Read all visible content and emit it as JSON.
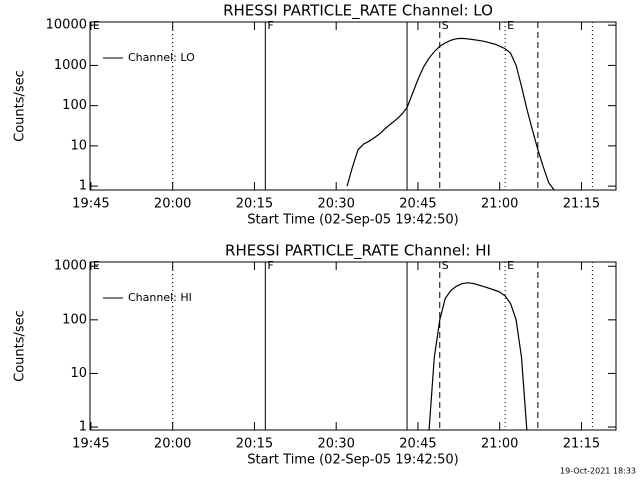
{
  "chart_data": [
    {
      "type": "line",
      "title": "RHESSI PARTICLE_RATE Channel: LO",
      "xlabel": "Start Time (02-Sep-05 19:42:50)",
      "ylabel": "Counts/sec",
      "xlim": [
        "19:44:50",
        "21:21:20"
      ],
      "xticks": [
        "19:45",
        "20:00",
        "20:15",
        "20:30",
        "20:45",
        "21:00",
        "21:15"
      ],
      "ylim": [
        0.8,
        12000
      ],
      "yticks": [
        1,
        10,
        100,
        1000,
        10000
      ],
      "log_y": true,
      "legend": "upper left",
      "markers": [
        {
          "x": "19:45",
          "label": "E"
        },
        {
          "x": "20:00",
          "style": "dotted"
        },
        {
          "x": "20:17",
          "style": "solid",
          "label": "F"
        },
        {
          "x": "20:43",
          "style": "solid"
        },
        {
          "x": "20:49",
          "style": "dashed",
          "label": "S"
        },
        {
          "x": "21:01",
          "style": "dotted",
          "label": "E"
        },
        {
          "x": "21:07",
          "style": "dashed"
        },
        {
          "x": "21:17",
          "style": "dotted"
        }
      ],
      "series": [
        {
          "name": "Channel: LO",
          "color": "#000000",
          "x": [
            "20:32",
            "20:33",
            "20:34",
            "20:35",
            "20:36",
            "20:37",
            "20:38",
            "20:39",
            "20:40",
            "20:41",
            "20:42",
            "20:43",
            "20:44",
            "20:45",
            "20:46",
            "20:47",
            "20:48",
            "20:49",
            "20:50",
            "20:51",
            "20:52",
            "20:53",
            "20:54",
            "20:55",
            "20:56",
            "20:57",
            "20:58",
            "20:59",
            "21:00",
            "21:01",
            "21:02",
            "21:03",
            "21:04",
            "21:05",
            "21:06",
            "21:07",
            "21:08",
            "21:09",
            "21:10"
          ],
          "values": [
            1,
            3,
            8,
            11,
            13,
            16,
            20,
            27,
            35,
            45,
            60,
            90,
            200,
            450,
            900,
            1500,
            2200,
            3000,
            3600,
            4200,
            4600,
            4700,
            4600,
            4400,
            4200,
            4000,
            3700,
            3400,
            3000,
            2600,
            2000,
            1000,
            300,
            80,
            25,
            8,
            3,
            1.2,
            0.8
          ]
        }
      ]
    },
    {
      "type": "line",
      "title": "RHESSI PARTICLE_RATE Channel: HI",
      "xlabel": "Start Time (02-Sep-05 19:42:50)",
      "ylabel": "Counts/sec",
      "xlim": [
        "19:44:50",
        "21:21:20"
      ],
      "xticks": [
        "19:45",
        "20:00",
        "20:15",
        "20:30",
        "20:45",
        "21:00",
        "21:15"
      ],
      "ylim": [
        0.88,
        1200
      ],
      "yticks": [
        1,
        10,
        100,
        1000
      ],
      "log_y": true,
      "legend": "upper left",
      "markers": [
        {
          "x": "19:45",
          "label": "E"
        },
        {
          "x": "20:00",
          "style": "dotted"
        },
        {
          "x": "20:17",
          "style": "solid",
          "label": "F"
        },
        {
          "x": "20:43",
          "style": "solid"
        },
        {
          "x": "20:49",
          "style": "dashed",
          "label": "S"
        },
        {
          "x": "21:01",
          "style": "dotted",
          "label": "E"
        },
        {
          "x": "21:07",
          "style": "dashed"
        },
        {
          "x": "21:17",
          "style": "dotted"
        }
      ],
      "series": [
        {
          "name": "Channel: HI",
          "color": "#000000",
          "x": [
            "20:47",
            "20:48",
            "20:49",
            "20:50",
            "20:51",
            "20:52",
            "20:53",
            "20:54",
            "20:55",
            "20:56",
            "20:57",
            "20:58",
            "20:59",
            "21:00",
            "21:01",
            "21:02",
            "21:03",
            "21:04",
            "21:05"
          ],
          "values": [
            0.8,
            20,
            100,
            250,
            350,
            420,
            470,
            490,
            480,
            450,
            420,
            390,
            360,
            330,
            280,
            200,
            100,
            20,
            0.8
          ]
        }
      ]
    }
  ],
  "footer": "19-Oct-2021 18:33"
}
